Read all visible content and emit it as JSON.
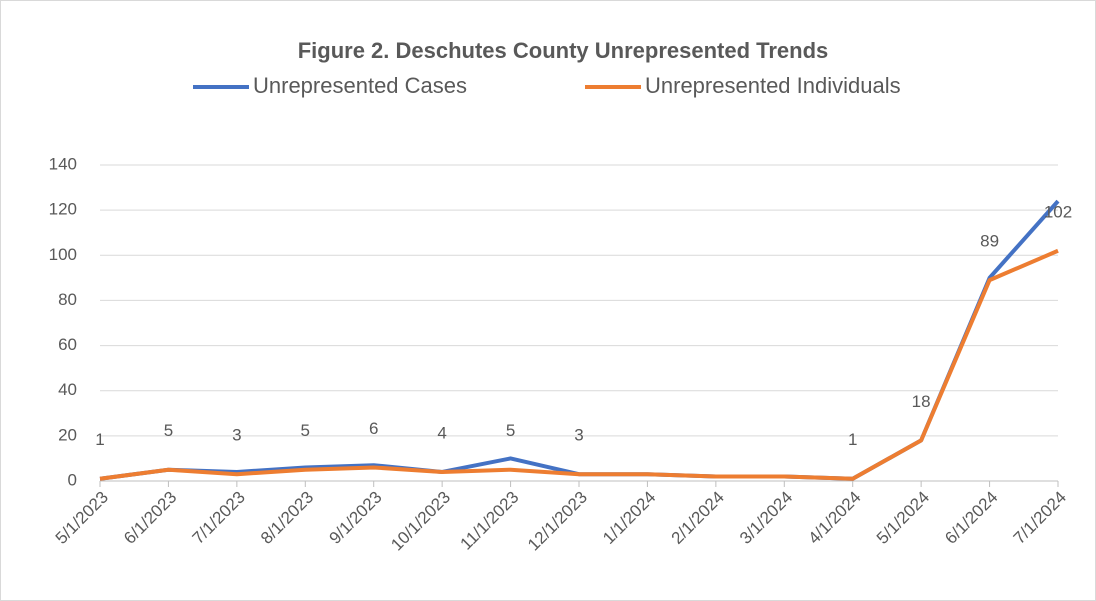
{
  "chart_data": {
    "type": "line",
    "title": "Figure 2. Deschutes County Unrepresented Trends",
    "categories": [
      "5/1/2023",
      "6/1/2023",
      "7/1/2023",
      "8/1/2023",
      "9/1/2023",
      "10/1/2023",
      "11/1/2023",
      "12/1/2023",
      "1/1/2024",
      "2/1/2024",
      "3/1/2024",
      "4/1/2024",
      "5/1/2024",
      "6/1/2024",
      "7/1/2024"
    ],
    "series": [
      {
        "name": "Unrepresented Cases",
        "color": "#4472c4",
        "values": [
          1,
          5,
          4,
          6,
          7,
          4,
          10,
          3,
          3,
          2,
          2,
          1,
          18,
          90,
          124
        ]
      },
      {
        "name": "Unrepresented Individuals",
        "color": "#ed7d31",
        "values": [
          1,
          5,
          3,
          5,
          6,
          4,
          5,
          3,
          3,
          2,
          2,
          1,
          18,
          89,
          102
        ],
        "value_labels": [
          "1",
          "5",
          "3",
          "5",
          "6",
          "4",
          "5",
          "3",
          null,
          null,
          null,
          "1",
          "18",
          "89",
          "102"
        ]
      }
    ],
    "ylim": [
      0,
      140
    ],
    "yticks": [
      0,
      20,
      40,
      60,
      80,
      100,
      120,
      140
    ],
    "grid": true,
    "legend": "top"
  }
}
